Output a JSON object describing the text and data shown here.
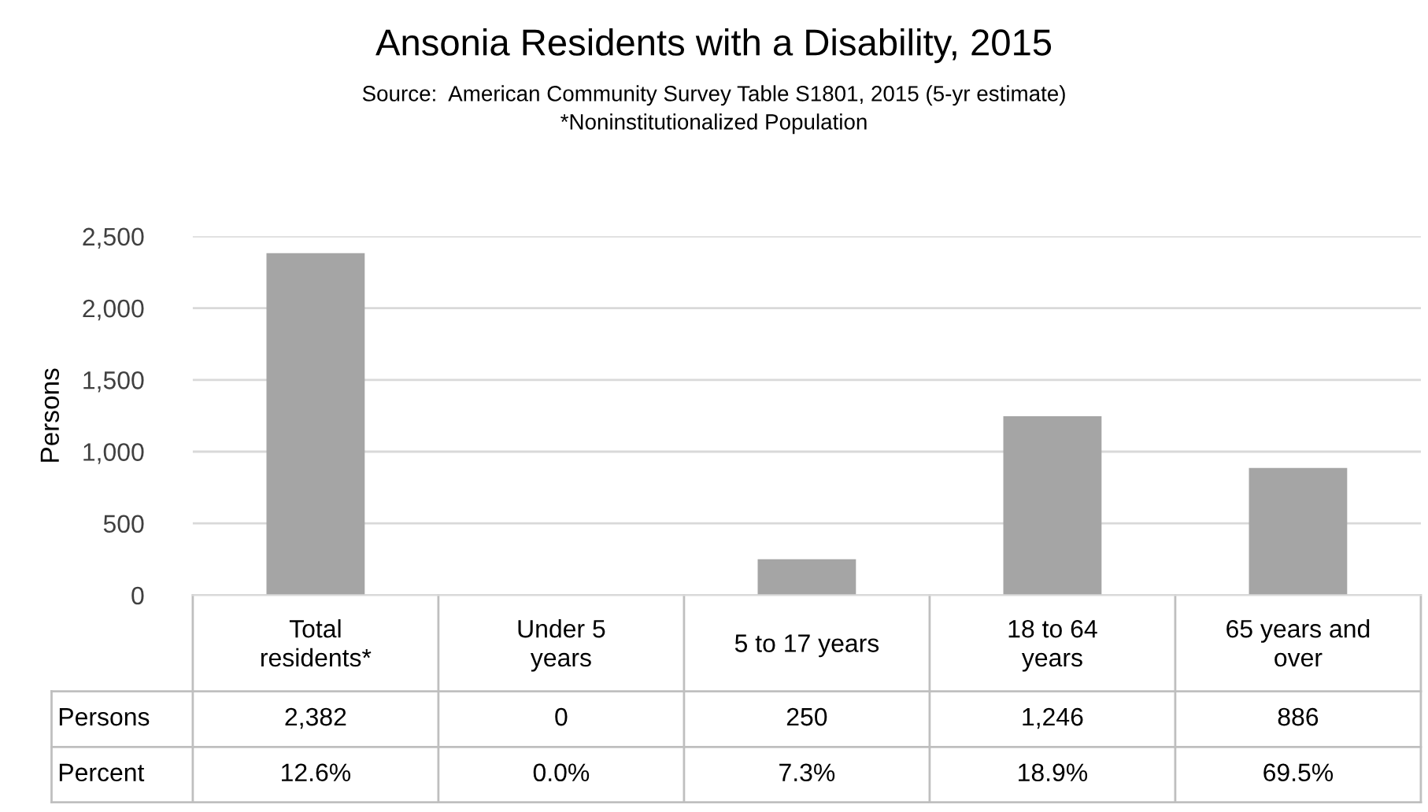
{
  "chart_data": {
    "type": "bar",
    "title": "Ansonia Residents with a Disability, 2015",
    "subtitle": "Source:  American Community Survey Table S1801, 2015 (5-yr estimate)\n*Noninstitutionalized Population",
    "ylabel": "Persons",
    "categories": [
      "Total\nresidents*",
      "Under 5\nyears",
      "5 to 17 years",
      "18 to 64\nyears",
      "65 years and\nover"
    ],
    "series": [
      {
        "name": "Persons",
        "color": "#a5a5a5",
        "values": [
          2382,
          0,
          250,
          1246,
          886
        ],
        "value_labels": [
          "2,382",
          "0",
          "250",
          "1,246",
          "886"
        ]
      }
    ],
    "annotations": [
      "Percent",
      "12.6%",
      "0.0%",
      "7.3%",
      "18.9%",
      "69.5%"
    ],
    "ylim": [
      0,
      2500
    ],
    "yticks": [
      {
        "value": 0,
        "label": "0"
      },
      {
        "value": 500,
        "label": "500"
      },
      {
        "value": 1000,
        "label": "1,000"
      },
      {
        "value": 1500,
        "label": "1,500"
      },
      {
        "value": 2000,
        "label": "2,000"
      },
      {
        "value": 2500,
        "label": "2,500"
      }
    ],
    "grid": "y",
    "legend": false
  }
}
